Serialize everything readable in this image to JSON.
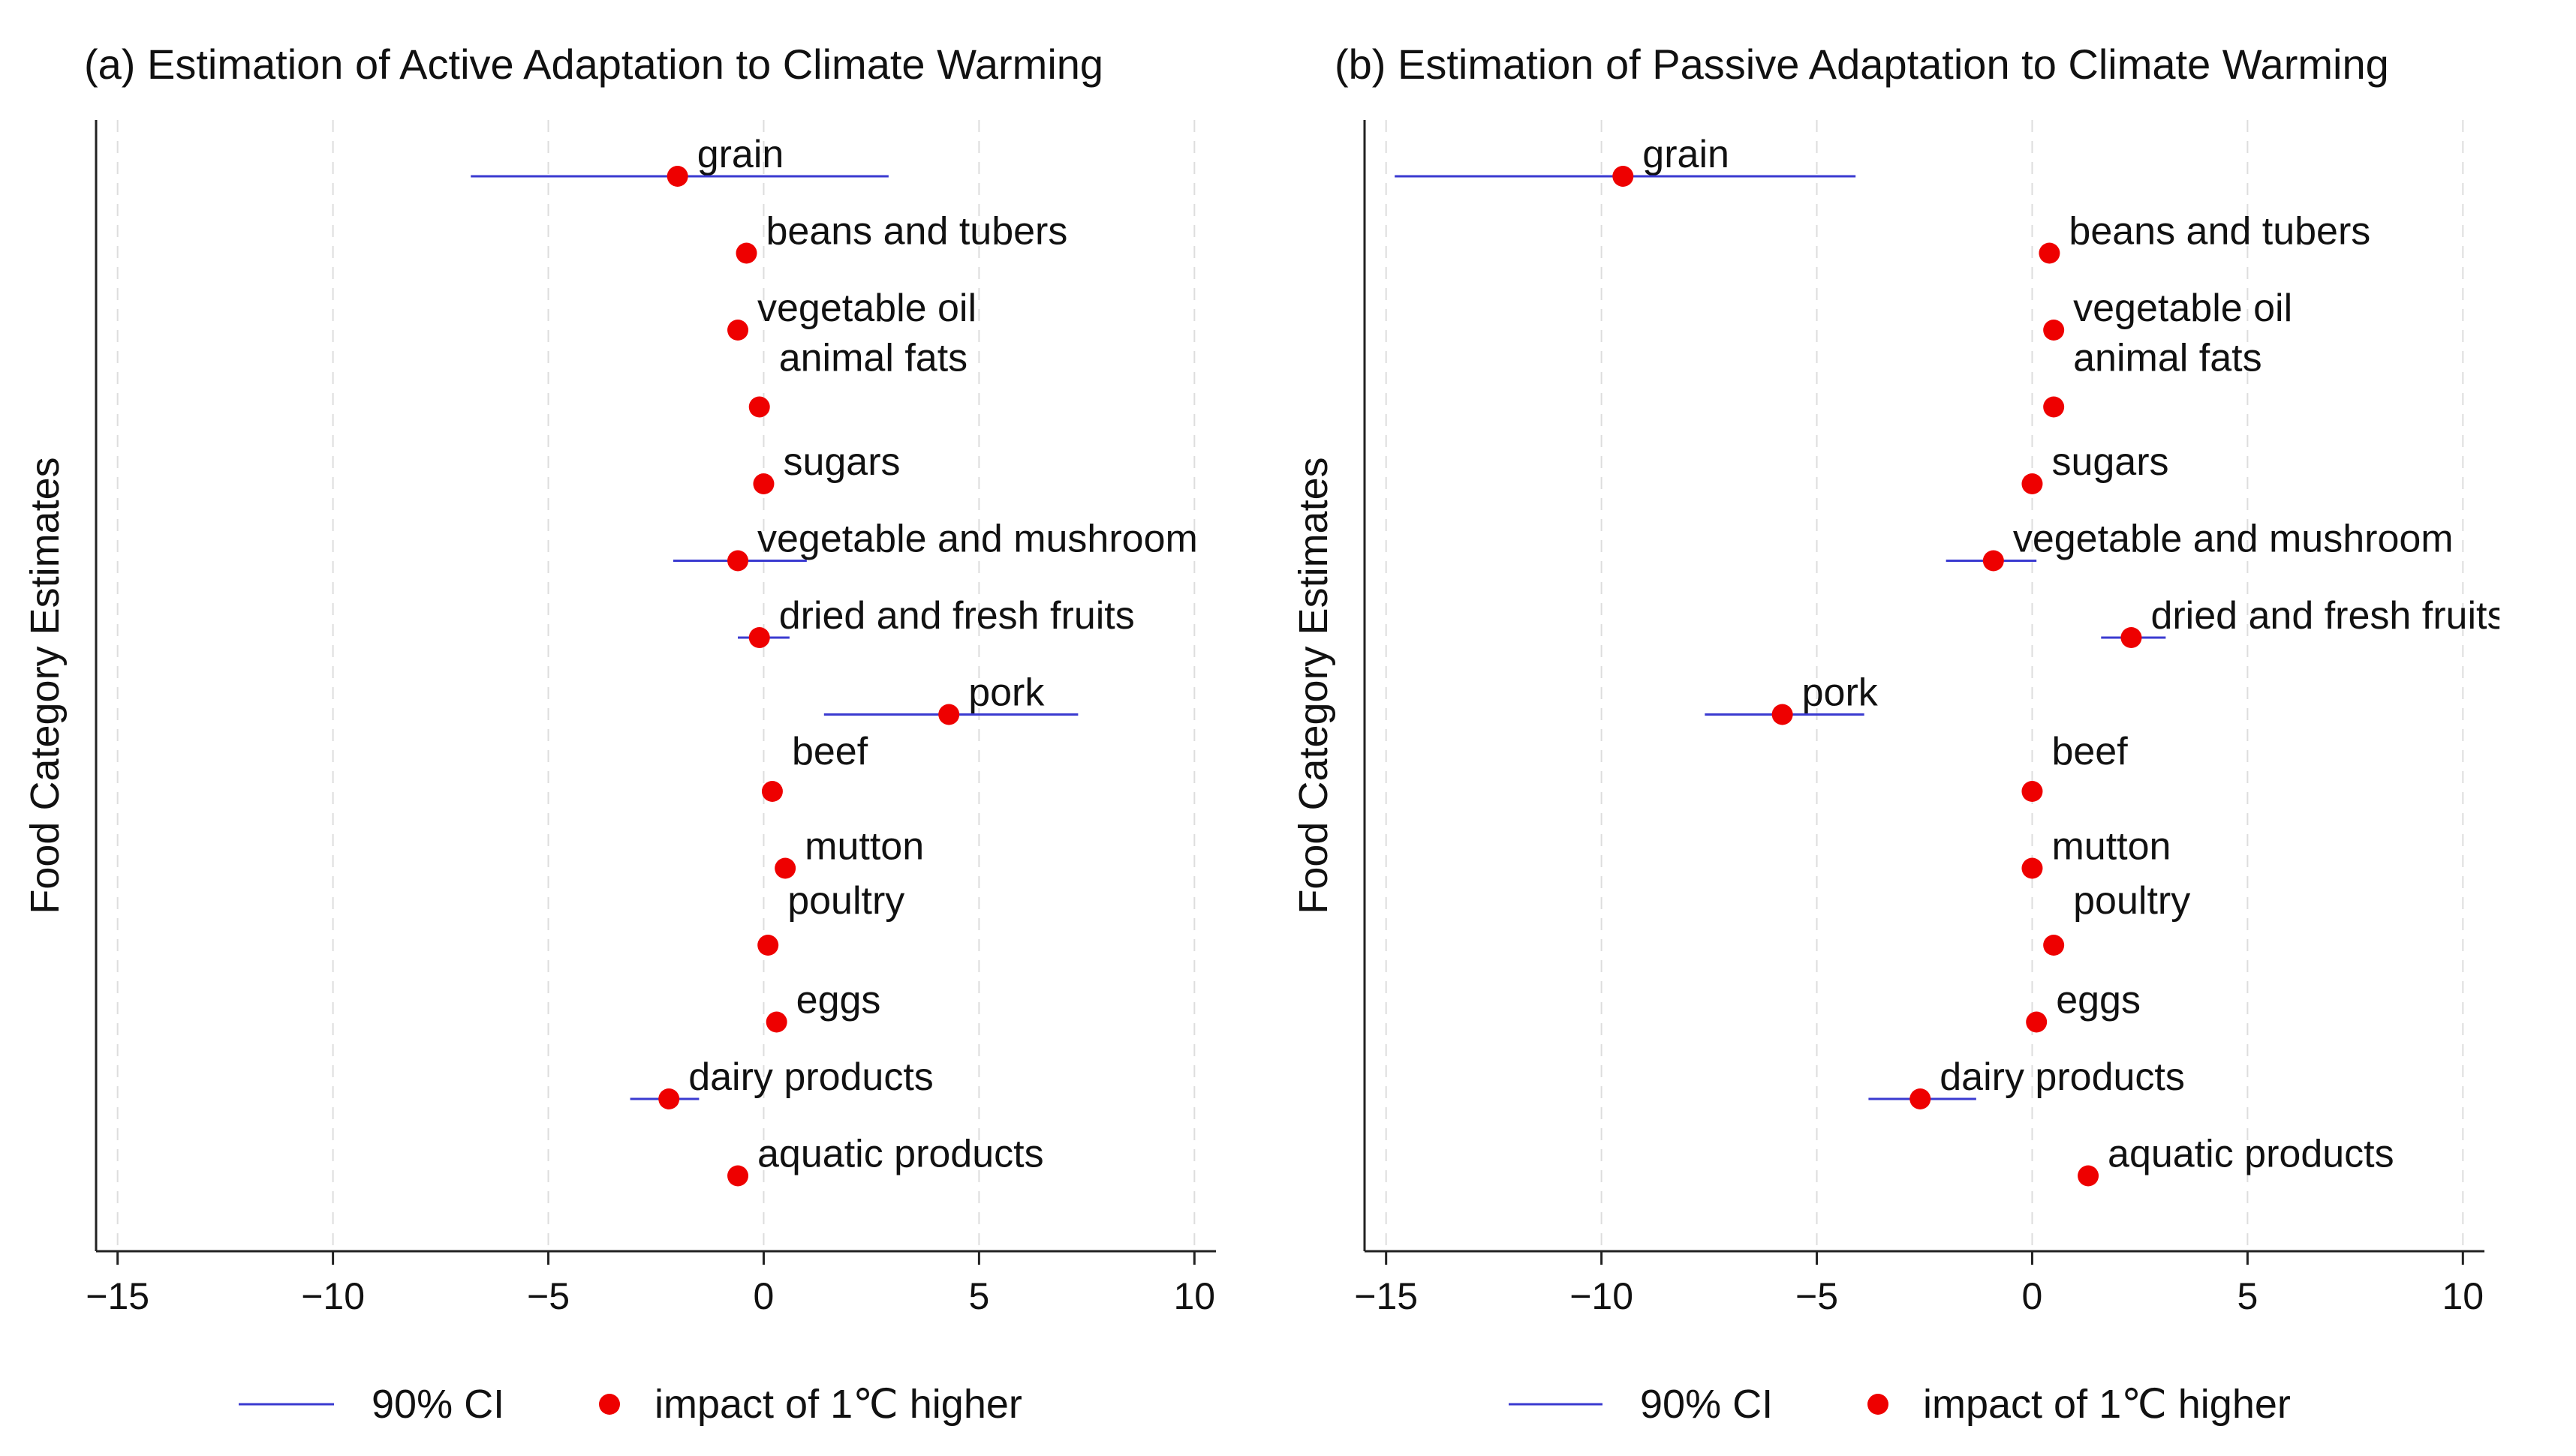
{
  "chart_data": {
    "type": "scatter",
    "ylabel": "Food Category Estimates",
    "xlim": [
      -15.5,
      10.5
    ],
    "xticks": [
      -15,
      -10,
      -5,
      0,
      5,
      10
    ],
    "xtick_labels": [
      "−15",
      "−10",
      "−5",
      "0",
      "5",
      "10"
    ],
    "grid": "vertical dashed at ticks",
    "legend": {
      "position": "bottom",
      "items": [
        {
          "name": "90% CI",
          "marker": "line",
          "color": "#3a3ad0"
        },
        {
          "name": "impact of 1℃ higher",
          "marker": "dot",
          "color": "#ee0000"
        }
      ]
    },
    "colors": {
      "ci": "#3a3ad0",
      "point": "#ee0000",
      "grid": "#dddddd",
      "axis": "#222222"
    },
    "panels": [
      {
        "title": "(a) Estimation of Active Adaptation to Climate Warming",
        "series": [
          {
            "name": "grain",
            "estimate": -2.0,
            "ci": [
              -6.8,
              2.9
            ]
          },
          {
            "name": "beans and tubers",
            "estimate": -0.4,
            "ci": null
          },
          {
            "name": "vegetable oil",
            "estimate": -0.6,
            "ci": null
          },
          {
            "name": "animal fats",
            "estimate": -0.1,
            "ci": null
          },
          {
            "name": "sugars",
            "estimate": 0.0,
            "ci": null
          },
          {
            "name": "vegetable and mushroom",
            "estimate": -0.6,
            "ci": [
              -2.1,
              1.0
            ]
          },
          {
            "name": "dried and fresh fruits",
            "estimate": -0.1,
            "ci": [
              -0.6,
              0.6
            ]
          },
          {
            "name": "pork",
            "estimate": 4.3,
            "ci": [
              1.4,
              7.3
            ]
          },
          {
            "name": "beef",
            "estimate": 0.2,
            "ci": null
          },
          {
            "name": "mutton",
            "estimate": 0.5,
            "ci": null
          },
          {
            "name": "poultry",
            "estimate": 0.1,
            "ci": null
          },
          {
            "name": "eggs",
            "estimate": 0.3,
            "ci": null
          },
          {
            "name": "dairy products",
            "estimate": -2.2,
            "ci": [
              -3.1,
              -1.5
            ]
          },
          {
            "name": "aquatic products",
            "estimate": -0.6,
            "ci": null
          }
        ]
      },
      {
        "title": "(b) Estimation of Passive Adaptation to Climate Warming",
        "series": [
          {
            "name": "grain",
            "estimate": -9.5,
            "ci": [
              -14.8,
              -4.1
            ]
          },
          {
            "name": "beans and tubers",
            "estimate": 0.4,
            "ci": null
          },
          {
            "name": "vegetable oil",
            "estimate": 0.5,
            "ci": null
          },
          {
            "name": "animal fats",
            "estimate": 0.5,
            "ci": null
          },
          {
            "name": "sugars",
            "estimate": 0.0,
            "ci": null
          },
          {
            "name": "vegetable and mushroom",
            "estimate": -0.9,
            "ci": [
              -2.0,
              0.1
            ]
          },
          {
            "name": "dried and fresh fruits",
            "estimate": 2.3,
            "ci": [
              1.6,
              3.1
            ]
          },
          {
            "name": "pork",
            "estimate": -5.8,
            "ci": [
              -7.6,
              -3.9
            ]
          },
          {
            "name": "beef",
            "estimate": 0.0,
            "ci": null
          },
          {
            "name": "mutton",
            "estimate": 0.0,
            "ci": null
          },
          {
            "name": "poultry",
            "estimate": 0.5,
            "ci": null
          },
          {
            "name": "eggs",
            "estimate": 0.1,
            "ci": null
          },
          {
            "name": "dairy products",
            "estimate": -2.6,
            "ci": [
              -3.8,
              -1.3
            ]
          },
          {
            "name": "aquatic products",
            "estimate": 1.3,
            "ci": null
          }
        ]
      }
    ]
  }
}
